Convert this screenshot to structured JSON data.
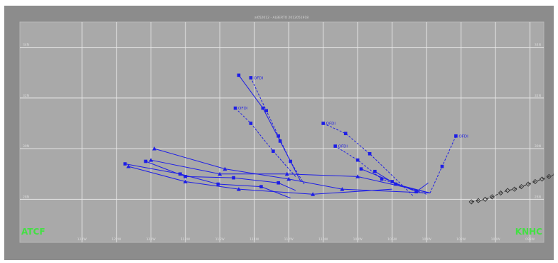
{
  "chart_data": {
    "type": "scatter",
    "title": "al052012 - ALBERTO  2012051918",
    "x_axis": {
      "tick_labels": [
        "124W",
        "122W",
        "120W",
        "118W",
        "116W",
        "114W",
        "112W",
        "110W",
        "108W",
        "106W",
        "104W",
        "102W",
        "100W",
        "098W"
      ]
    },
    "y_axis": {
      "tick_labels": [
        "34N",
        "32N",
        "30N",
        "28N"
      ]
    },
    "grid": true,
    "corner_labels": {
      "left": "ATCF",
      "right": "KNHC"
    },
    "colors": {
      "background": "#a9a9a9",
      "grid": "#e6e6e6",
      "forecast": "#1e1ee6",
      "best_track": "#323232",
      "logo": "#43e043"
    },
    "best_track": {
      "name": "",
      "style": "dashed-diamond",
      "points": [
        [
          -101.4,
          27.9
        ],
        [
          -101.0,
          27.95
        ],
        [
          -100.6,
          28.0
        ],
        [
          -100.2,
          28.1
        ],
        [
          -99.7,
          28.25
        ],
        [
          -99.3,
          28.35
        ],
        [
          -98.9,
          28.4
        ],
        [
          -98.5,
          28.5
        ],
        [
          -98.1,
          28.6
        ],
        [
          -97.7,
          28.7
        ],
        [
          -97.3,
          28.8
        ],
        [
          -96.9,
          28.9
        ],
        [
          -96.5,
          29.0
        ],
        [
          -96.1,
          29.2
        ],
        [
          -95.7,
          29.4
        ],
        [
          -95.3,
          29.6
        ],
        [
          -95.0,
          29.85
        ],
        [
          -94.6,
          30.1
        ],
        [
          -94.2,
          30.35
        ],
        [
          -93.8,
          30.5
        ],
        [
          -93.4,
          30.7
        ],
        [
          -93.0,
          30.8
        ],
        [
          -92.6,
          30.7
        ],
        [
          -92.2,
          30.4
        ]
      ]
    },
    "forecast_tracks": [
      {
        "name": "OFDI",
        "label": "OFDI",
        "marker": "square",
        "points": [
          [
            -103.8,
            28.25
          ],
          [
            -103.1,
            29.3
          ],
          [
            -102.3,
            30.5
          ]
        ]
      },
      {
        "name": "",
        "label": "",
        "marker": "square",
        "points": [
          [
            -103.8,
            28.25
          ],
          [
            -105.8,
            28.6
          ],
          [
            -107.0,
            29.1
          ]
        ]
      },
      {
        "name": "",
        "label": "",
        "marker": "square",
        "points": [
          [
            -103.9,
            28.65
          ],
          [
            -104.6,
            28.3
          ],
          [
            -106.0,
            28.7
          ],
          [
            -107.8,
            29.2
          ]
        ]
      },
      {
        "name": "OFDI",
        "label": "OFDI",
        "marker": "square",
        "points": [
          [
            -104.0,
            28.2
          ],
          [
            -106.6,
            28.8
          ],
          [
            -108.0,
            29.55
          ],
          [
            -109.3,
            30.1
          ]
        ]
      },
      {
        "name": "OFDI",
        "label": "OFDI",
        "marker": "square",
        "points": [
          [
            -104.8,
            28.15
          ],
          [
            -107.3,
            29.8
          ],
          [
            -108.7,
            30.6
          ],
          [
            -110.0,
            31.0
          ]
        ]
      },
      {
        "name": "OFDI",
        "label": "OFDI",
        "marker": "square",
        "points": [
          [
            -111.1,
            28.6
          ],
          [
            -111.9,
            29.5
          ],
          [
            -112.6,
            30.5
          ],
          [
            -113.3,
            31.5
          ],
          [
            -114.2,
            32.8
          ]
        ]
      },
      {
        "name": "",
        "label": "",
        "marker": "square",
        "points": [
          [
            -111.3,
            28.7
          ],
          [
            -112.5,
            30.3
          ],
          [
            -113.5,
            31.6
          ],
          [
            -114.9,
            32.9
          ]
        ]
      },
      {
        "name": "OFDI",
        "label": "OFDI",
        "marker": "square",
        "points": [
          [
            -111.6,
            28.9
          ],
          [
            -112.9,
            29.9
          ],
          [
            -114.2,
            31.0
          ],
          [
            -115.1,
            31.6
          ]
        ]
      },
      {
        "name": "",
        "label": "",
        "marker": "triangle",
        "points": [
          [
            -103.8,
            28.25
          ],
          [
            -108.9,
            28.4
          ],
          [
            -112.0,
            28.8
          ],
          [
            -115.7,
            29.2
          ],
          [
            -119.8,
            30.0
          ]
        ]
      },
      {
        "name": "",
        "label": "",
        "marker": "triangle",
        "points": [
          [
            -103.8,
            28.25
          ],
          [
            -108.0,
            28.9
          ],
          [
            -112.1,
            29.0
          ],
          [
            -116.0,
            29.0
          ],
          [
            -120.0,
            29.55
          ]
        ]
      },
      {
        "name": "",
        "label": "",
        "marker": "triangle",
        "points": [
          [
            -106.0,
            28.4
          ],
          [
            -110.6,
            28.2
          ],
          [
            -114.9,
            28.4
          ],
          [
            -118.0,
            28.7
          ],
          [
            -121.3,
            29.3
          ]
        ]
      },
      {
        "name": "",
        "label": "",
        "marker": "square",
        "points": [
          [
            -111.6,
            28.35
          ],
          [
            -112.6,
            28.65
          ],
          [
            -115.2,
            28.85
          ],
          [
            -118.0,
            28.9
          ],
          [
            -120.3,
            29.5
          ]
        ]
      },
      {
        "name": "",
        "label": "",
        "marker": "square",
        "points": [
          [
            -111.9,
            28.05
          ],
          [
            -113.6,
            28.5
          ],
          [
            -116.1,
            28.6
          ],
          [
            -118.3,
            29.0
          ],
          [
            -121.5,
            29.4
          ]
        ]
      }
    ]
  }
}
